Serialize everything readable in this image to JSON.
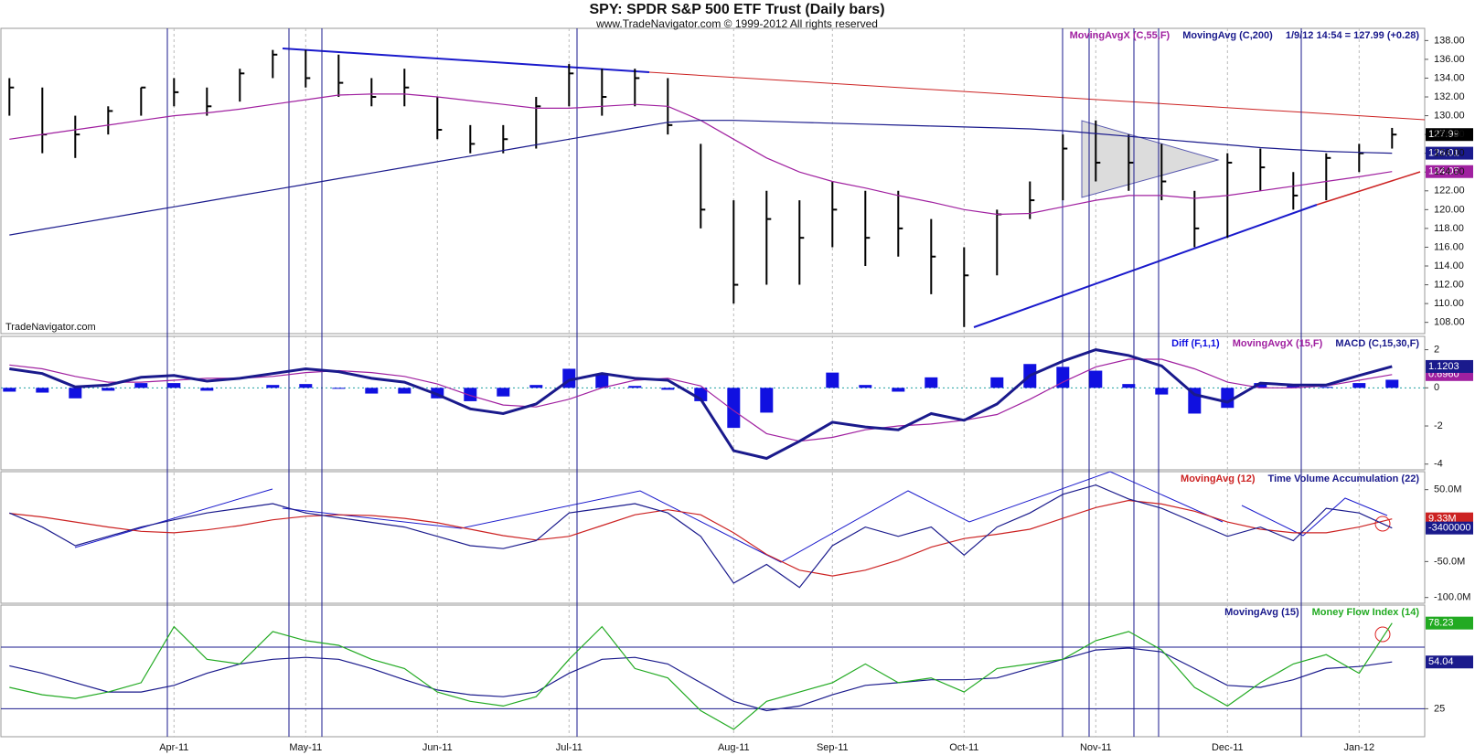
{
  "header": {
    "title": "SPY:  SPDR S&P 500 ETF Trust  (Daily bars)",
    "subtitle": "www.TradeNavigator.com © 1999-2012 All rights reserved"
  },
  "watermark": "TradeNavigator.com",
  "chart_data": [
    {
      "type": "ohlc",
      "categories": [
        null,
        null,
        null,
        null,
        null,
        "Apr-11",
        null,
        null,
        null,
        "May-11",
        null,
        null,
        null,
        "Jun-11",
        null,
        null,
        null,
        "Jul-11",
        null,
        null,
        null,
        null,
        "Aug-11",
        null,
        null,
        "Sep-11",
        null,
        null,
        null,
        "Oct-11",
        null,
        null,
        null,
        "Nov-11",
        null,
        null,
        null,
        "Dec-11",
        null,
        null,
        null,
        "Jan-12",
        null
      ],
      "color": "#000000",
      "high": [
        134,
        133,
        130,
        131,
        133,
        134,
        133,
        135,
        137,
        137,
        136.5,
        134,
        135,
        132,
        129,
        129,
        132,
        135.5,
        135,
        135,
        134,
        127,
        121,
        122,
        121,
        123,
        122,
        122,
        119,
        116,
        120,
        123,
        128,
        129.5,
        128,
        127,
        122,
        126,
        126.5,
        124,
        126,
        127,
        128.7
      ],
      "low": [
        130,
        126,
        125.5,
        128,
        130,
        131,
        130,
        131.5,
        134,
        133,
        132,
        131,
        131,
        127.5,
        126,
        126,
        126.5,
        131,
        130,
        131,
        128,
        118,
        110,
        112,
        112,
        116,
        114,
        115,
        111,
        107.5,
        113,
        119,
        121,
        123,
        122,
        121,
        116,
        117,
        122,
        120,
        121,
        124,
        126.5
      ],
      "close": [
        133,
        128,
        128,
        130.5,
        133,
        132.5,
        131,
        134.5,
        136.5,
        134,
        133.5,
        132,
        133,
        128.5,
        127,
        127.5,
        131,
        134.5,
        132,
        134,
        129,
        120,
        112,
        119,
        117,
        120,
        117,
        118,
        115,
        113,
        119.5,
        121,
        126.5,
        125,
        125,
        123,
        118,
        125,
        124.5,
        121.5,
        125.5,
        126,
        127.99
      ],
      "quote": "1/9/12 14:54 = 127.99 (+0.28)",
      "series": [
        {
          "name": "MovingAvgX (C,55,F)",
          "color": "#a020a0",
          "values": [
            127.5,
            128,
            128.5,
            129,
            129.5,
            130,
            130.3,
            130.7,
            131.2,
            131.7,
            132.2,
            132.3,
            132.3,
            132,
            131.6,
            131.2,
            130.8,
            130.8,
            131,
            131.2,
            131,
            129.5,
            127.5,
            125.5,
            124,
            123,
            122.3,
            121.5,
            120.8,
            120,
            119.5,
            119.6,
            120.3,
            121,
            121.5,
            121.5,
            121.2,
            121.5,
            122,
            122.5,
            123,
            123.5,
            124.05
          ]
        },
        {
          "name": "MovingAvg (C,200)",
          "color": "#1a1a8c",
          "values": [
            117.3,
            117.9,
            118.5,
            119.1,
            119.7,
            120.3,
            120.9,
            121.5,
            122.1,
            122.7,
            123.3,
            123.9,
            124.5,
            125.1,
            125.7,
            126.3,
            126.9,
            127.5,
            128.1,
            128.7,
            129.3,
            129.5,
            129.5,
            129.4,
            129.3,
            129.2,
            129.1,
            129,
            128.9,
            128.8,
            128.7,
            128.6,
            128.4,
            128.1,
            127.8,
            127.5,
            127.2,
            126.9,
            126.6,
            126.4,
            126.2,
            126.1,
            126.01
          ]
        }
      ],
      "ylim": [
        106.8,
        139.3
      ],
      "yticks": [
        {
          "value": 108,
          "label": "108.00"
        },
        {
          "value": 110,
          "label": "110.00"
        },
        {
          "value": 112,
          "label": "112.00"
        },
        {
          "value": 114,
          "label": "114.00"
        },
        {
          "value": 116,
          "label": "116.00"
        },
        {
          "value": 118,
          "label": "118.00"
        },
        {
          "value": 120,
          "label": "120.00"
        },
        {
          "value": 122,
          "label": "122.00"
        },
        {
          "value": 124,
          "label": "124.00"
        },
        {
          "value": 126,
          "label": "126.00"
        },
        {
          "value": 128,
          "label": "128.00"
        },
        {
          "value": 130,
          "label": "130.00"
        },
        {
          "value": 132,
          "label": "132.00"
        },
        {
          "value": 134,
          "label": "134.00"
        },
        {
          "value": 136,
          "label": "136.00"
        },
        {
          "value": 138,
          "label": "138.00"
        }
      ]
    },
    {
      "type": "macd",
      "histogram": {
        "name": "Diff (F,1,1)",
        "color": "#1010e0",
        "values": [
          -0.2,
          -0.25,
          -0.55,
          -0.15,
          0.25,
          0.25,
          -0.15,
          0,
          0.15,
          0.2,
          -0.05,
          -0.3,
          -0.3,
          -0.55,
          -0.7,
          -0.45,
          0.15,
          1.0,
          0.75,
          0.1,
          -0.1,
          -0.7,
          -2.1,
          -1.3,
          0,
          0.8,
          0.15,
          -0.2,
          0.55,
          0,
          0.55,
          1.25,
          1.1,
          0.9,
          0.2,
          -0.35,
          -1.35,
          -1.05,
          0.25,
          0.15,
          0.05,
          0.25,
          0.4243
        ]
      },
      "series": [
        {
          "name": "MovingAvgX (15,F)",
          "color": "#a020a0",
          "values": [
            1.2,
            1.0,
            0.6,
            0.3,
            0.3,
            0.4,
            0.5,
            0.5,
            0.6,
            0.8,
            0.9,
            0.8,
            0.6,
            0.2,
            -0.4,
            -0.9,
            -1.0,
            -0.6,
            0.0,
            0.4,
            0.5,
            0.1,
            -1.2,
            -2.4,
            -2.8,
            -2.6,
            -2.2,
            -2.0,
            -1.9,
            -1.7,
            -1.4,
            -0.6,
            0.3,
            1.1,
            1.5,
            1.5,
            1.0,
            0.3,
            0.0,
            0.0,
            0.1,
            0.4,
            0.696
          ],
          "value_labels": [
            null,
            null,
            null,
            null,
            null,
            null,
            null,
            null,
            null,
            null,
            null,
            null,
            null,
            null,
            null,
            null,
            null,
            null,
            null,
            null,
            null,
            null,
            null,
            null,
            null,
            null,
            null,
            null,
            null,
            null,
            null,
            null,
            null,
            null,
            null,
            null,
            null,
            null,
            null,
            null,
            null,
            null,
            "0.6960"
          ]
        },
        {
          "name": "MACD (C,15,30,F)",
          "color": "#1a1a8c",
          "width": 3,
          "values": [
            1.0,
            0.75,
            0.05,
            0.15,
            0.55,
            0.65,
            0.35,
            0.5,
            0.75,
            1.0,
            0.85,
            0.5,
            0.3,
            -0.35,
            -1.1,
            -1.35,
            -0.85,
            0.4,
            0.75,
            0.5,
            0.4,
            -0.6,
            -3.3,
            -3.7,
            -2.8,
            -1.8,
            -2.05,
            -2.2,
            -1.35,
            -1.7,
            -0.85,
            0.65,
            1.4,
            2.0,
            1.7,
            1.15,
            -0.35,
            -0.75,
            0.25,
            0.15,
            0.15,
            0.65,
            1.1203
          ]
        }
      ],
      "ylim": [
        -4.3,
        2.7
      ],
      "yticks": [
        2,
        0,
        -2,
        -4
      ]
    },
    {
      "type": "line",
      "series": [
        {
          "name": "MovingAvg (12)",
          "color": "#cc2222",
          "values": [
            17000000,
            12000000,
            5000000,
            -2000000,
            -8000000,
            -10000000,
            -6000000,
            0,
            8000000,
            13000000,
            15000000,
            14000000,
            10000000,
            4000000,
            -5000000,
            -14000000,
            -20000000,
            -15000000,
            0,
            15000000,
            22000000,
            15000000,
            -10000000,
            -40000000,
            -62000000,
            -70000000,
            -62000000,
            -48000000,
            -30000000,
            -18000000,
            -12000000,
            -5000000,
            10000000,
            25000000,
            35000000,
            30000000,
            20000000,
            5000000,
            -5000000,
            -10000000,
            -10000000,
            -2000000,
            9330000
          ],
          "value_labels": [
            null,
            null,
            null,
            null,
            null,
            null,
            null,
            null,
            null,
            null,
            null,
            null,
            null,
            null,
            null,
            null,
            null,
            null,
            null,
            null,
            null,
            null,
            null,
            null,
            null,
            null,
            null,
            null,
            null,
            null,
            null,
            null,
            null,
            null,
            null,
            null,
            null,
            null,
            null,
            null,
            null,
            null,
            "9.33M"
          ]
        },
        {
          "name": "Time Volume Accumulation (22)",
          "color": "#1a1a8c",
          "values": [
            17500000,
            -2000000,
            -28000000,
            -15000000,
            -2000000,
            8000000,
            17500000,
            24000000,
            30500000,
            17500000,
            11000000,
            4500000,
            -2000000,
            -15000000,
            -28000000,
            -32000000,
            -21000000,
            17500000,
            24000000,
            30500000,
            17500000,
            -15000000,
            -80000000,
            -54000000,
            -86000000,
            -28000000,
            -2000000,
            -15000000,
            -2000000,
            -41000000,
            -2000000,
            17500000,
            43500000,
            56500000,
            37000000,
            24000000,
            4500000,
            -15000000,
            -2000000,
            -21000000,
            24000000,
            17500000,
            -3400000
          ]
        }
      ],
      "ylim": [
        -108000000,
        75000000
      ],
      "yticks": [
        {
          "value": 50000000,
          "label": "50.0M"
        },
        {
          "value": -50000000,
          "label": "-50.0M"
        },
        {
          "value": -100000000,
          "label": "-100.0M"
        }
      ]
    },
    {
      "type": "line",
      "series": [
        {
          "name": "MovingAvg (15)",
          "color": "#1a1a8c",
          "values": [
            51.7,
            47,
            41.2,
            35.4,
            35.4,
            39.5,
            47,
            52.8,
            55.7,
            56.9,
            55.7,
            50,
            43,
            36.6,
            33.7,
            32.5,
            35.4,
            47,
            55.7,
            56.9,
            52.8,
            41.2,
            29.6,
            23.8,
            26.7,
            33.7,
            39.5,
            41.2,
            43,
            43,
            44.1,
            50,
            55.7,
            61.5,
            62.7,
            60.3,
            50,
            39.5,
            38.3,
            43,
            50,
            51.2,
            54.04
          ]
        },
        {
          "name": "Money Flow Index (14)",
          "color": "#22aa22",
          "values": [
            38.3,
            33.7,
            31.4,
            35.4,
            41.2,
            76,
            55.7,
            52.8,
            73,
            67.3,
            64.4,
            55.7,
            50,
            35.4,
            29.6,
            26.7,
            32.5,
            55.7,
            76,
            50,
            44.1,
            23.8,
            12.2,
            29.6,
            35.4,
            41.2,
            52.8,
            41.2,
            44.1,
            35.4,
            50,
            52.8,
            55.7,
            67.3,
            73,
            61.5,
            38.3,
            26.7,
            41.2,
            52.8,
            58.6,
            47,
            78.23
          ]
        }
      ],
      "ylim": [
        7.6,
        89.4
      ],
      "yticks": [
        25
      ]
    }
  ]
}
